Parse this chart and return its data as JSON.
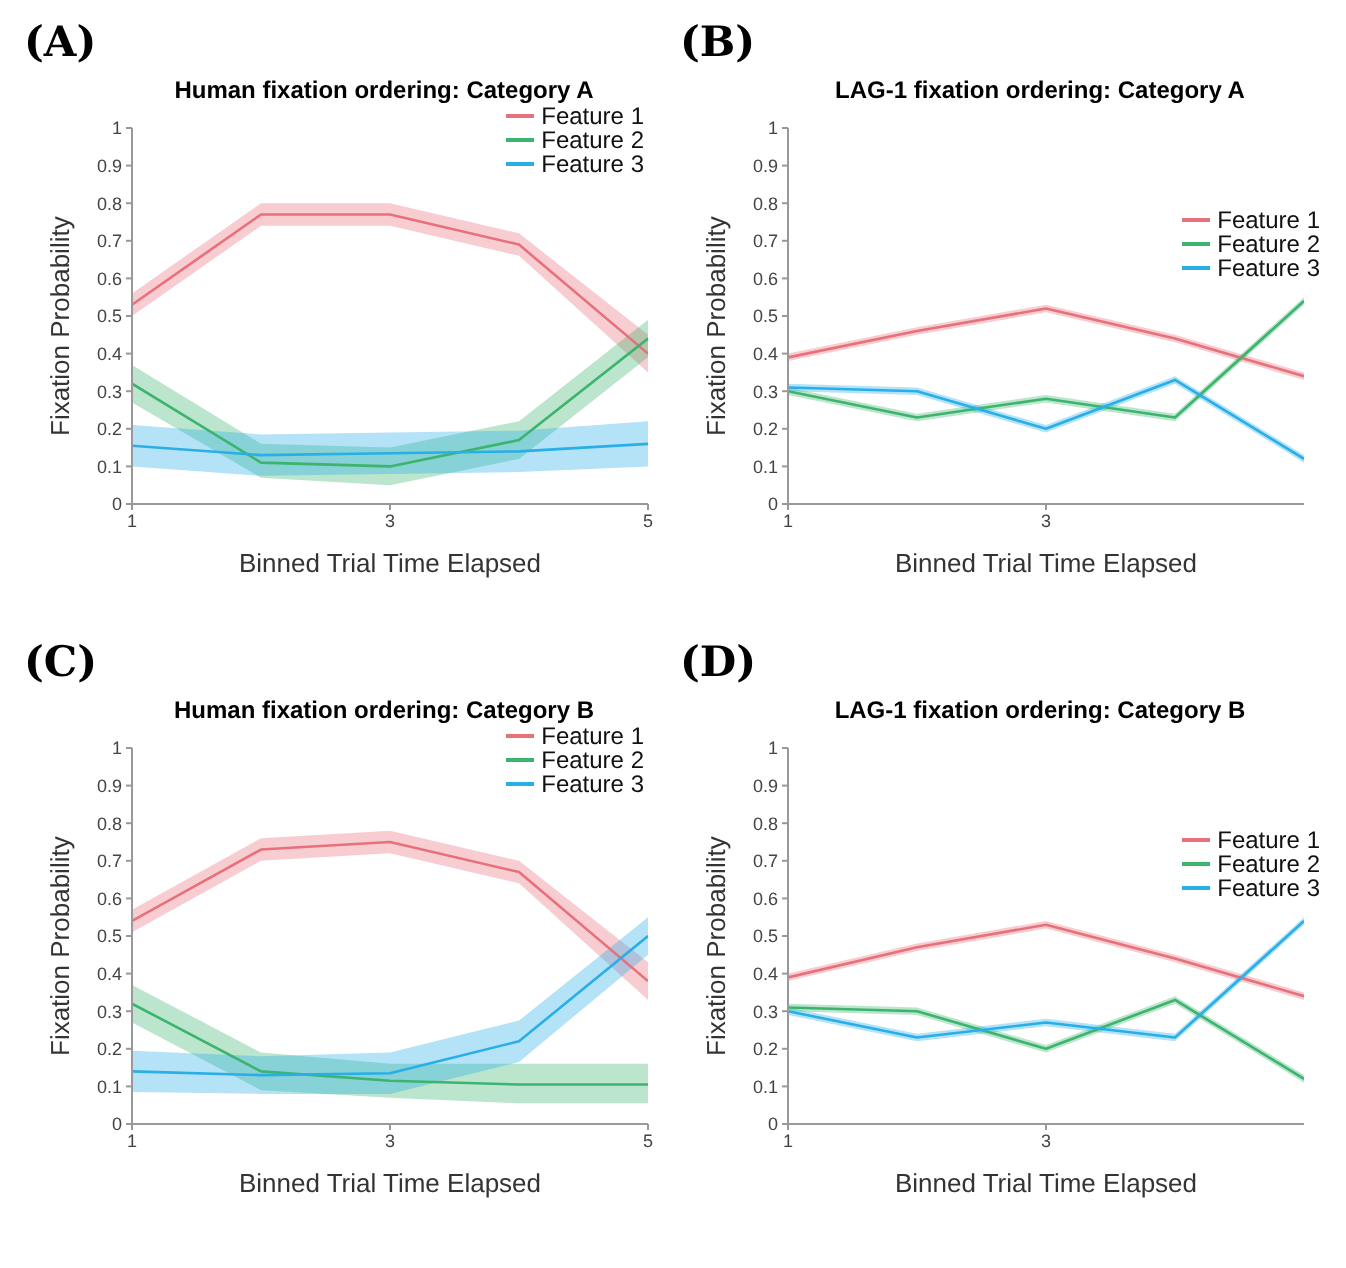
{
  "chart_data": [
    {
      "type": "line",
      "annotations": [
        "(A)"
      ],
      "title": "Human fixation ordering: Category A",
      "xlabel": "Binned Trial Time Elapsed",
      "ylabel": "Fixation Probability",
      "x": [
        1,
        2,
        3,
        4,
        5
      ],
      "xlim": [
        1,
        5
      ],
      "xticks": [
        1,
        3,
        5
      ],
      "ylim": [
        0,
        1
      ],
      "yticks": [
        0,
        0.1,
        0.2,
        0.3,
        0.4,
        0.5,
        0.6,
        0.7,
        0.8,
        0.9,
        1
      ],
      "grid": false,
      "legend": "top right",
      "marker": "none",
      "line_style": "solid",
      "series": [
        {
          "name": "Feature 1",
          "color": "#e8707a",
          "values": [
            0.53,
            0.77,
            0.77,
            0.69,
            0.4
          ],
          "lower": [
            0.5,
            0.74,
            0.74,
            0.66,
            0.35
          ],
          "upper": [
            0.56,
            0.8,
            0.8,
            0.72,
            0.45
          ]
        },
        {
          "name": "Feature 2",
          "color": "#3cb46e",
          "values": [
            0.32,
            0.11,
            0.1,
            0.17,
            0.44
          ],
          "lower": [
            0.27,
            0.07,
            0.05,
            0.12,
            0.39
          ],
          "upper": [
            0.37,
            0.16,
            0.15,
            0.22,
            0.49
          ]
        },
        {
          "name": "Feature 3",
          "color": "#29aee8",
          "values": [
            0.155,
            0.13,
            0.135,
            0.14,
            0.16
          ],
          "lower": [
            0.1,
            0.075,
            0.08,
            0.085,
            0.1
          ],
          "upper": [
            0.21,
            0.185,
            0.19,
            0.195,
            0.22
          ]
        }
      ]
    },
    {
      "type": "line",
      "annotations": [
        "(B)"
      ],
      "title": "LAG-1 fixation ordering: Category A",
      "xlabel": "Binned Trial Time Elapsed",
      "ylabel": "Fixation Probability",
      "x": [
        1,
        2,
        3,
        4,
        5
      ],
      "xlim": [
        1,
        5
      ],
      "xticks": [
        1,
        3
      ],
      "ylim": [
        0,
        1
      ],
      "yticks": [
        0,
        0.1,
        0.2,
        0.3,
        0.4,
        0.5,
        0.6,
        0.7,
        0.8,
        0.9,
        1
      ],
      "grid": false,
      "legend": "right",
      "marker": "none",
      "line_style": "solid",
      "series": [
        {
          "name": "Feature 1",
          "color": "#e8707a",
          "values": [
            0.39,
            0.46,
            0.52,
            0.44,
            0.34
          ],
          "lower": [
            0.38,
            0.45,
            0.51,
            0.43,
            0.33
          ],
          "upper": [
            0.4,
            0.47,
            0.53,
            0.45,
            0.35
          ]
        },
        {
          "name": "Feature 2",
          "color": "#3cb46e",
          "values": [
            0.3,
            0.23,
            0.28,
            0.23,
            0.54
          ],
          "lower": [
            0.29,
            0.22,
            0.27,
            0.22,
            0.53
          ],
          "upper": [
            0.31,
            0.24,
            0.29,
            0.24,
            0.55
          ]
        },
        {
          "name": "Feature 3",
          "color": "#29aee8",
          "values": [
            0.31,
            0.3,
            0.2,
            0.33,
            0.12
          ],
          "lower": [
            0.3,
            0.29,
            0.19,
            0.32,
            0.11
          ],
          "upper": [
            0.32,
            0.31,
            0.21,
            0.34,
            0.13
          ]
        }
      ]
    },
    {
      "type": "line",
      "annotations": [
        "(C)"
      ],
      "title": "Human fixation ordering: Category B",
      "xlabel": "Binned Trial Time Elapsed",
      "ylabel": "Fixation Probability",
      "x": [
        1,
        2,
        3,
        4,
        5
      ],
      "xlim": [
        1,
        5
      ],
      "xticks": [
        1,
        3,
        5
      ],
      "ylim": [
        0,
        1
      ],
      "yticks": [
        0,
        0.1,
        0.2,
        0.3,
        0.4,
        0.5,
        0.6,
        0.7,
        0.8,
        0.9,
        1
      ],
      "grid": false,
      "legend": "top right",
      "marker": "none",
      "line_style": "solid",
      "series": [
        {
          "name": "Feature 1",
          "color": "#e8707a",
          "values": [
            0.54,
            0.73,
            0.75,
            0.67,
            0.38
          ],
          "lower": [
            0.51,
            0.7,
            0.72,
            0.64,
            0.33
          ],
          "upper": [
            0.57,
            0.76,
            0.78,
            0.7,
            0.43
          ]
        },
        {
          "name": "Feature 2",
          "color": "#3cb46e",
          "values": [
            0.32,
            0.14,
            0.115,
            0.105,
            0.105
          ],
          "lower": [
            0.27,
            0.09,
            0.07,
            0.055,
            0.055
          ],
          "upper": [
            0.37,
            0.19,
            0.16,
            0.16,
            0.16
          ]
        },
        {
          "name": "Feature 3",
          "color": "#29aee8",
          "values": [
            0.14,
            0.13,
            0.135,
            0.22,
            0.5
          ],
          "lower": [
            0.085,
            0.08,
            0.08,
            0.165,
            0.45
          ],
          "upper": [
            0.195,
            0.18,
            0.19,
            0.275,
            0.55
          ]
        }
      ]
    },
    {
      "type": "line",
      "annotations": [
        "(D)"
      ],
      "title": "LAG-1 fixation ordering: Category B",
      "xlabel": "Binned Trial Time Elapsed",
      "ylabel": "Fixation Probability",
      "x": [
        1,
        2,
        3,
        4,
        5
      ],
      "xlim": [
        1,
        5
      ],
      "xticks": [
        1,
        3
      ],
      "ylim": [
        0,
        1
      ],
      "yticks": [
        0,
        0.1,
        0.2,
        0.3,
        0.4,
        0.5,
        0.6,
        0.7,
        0.8,
        0.9,
        1
      ],
      "grid": false,
      "legend": "right",
      "marker": "none",
      "line_style": "solid",
      "series": [
        {
          "name": "Feature 1",
          "color": "#e8707a",
          "values": [
            0.39,
            0.47,
            0.53,
            0.44,
            0.34
          ],
          "lower": [
            0.38,
            0.46,
            0.52,
            0.43,
            0.33
          ],
          "upper": [
            0.4,
            0.48,
            0.54,
            0.45,
            0.35
          ]
        },
        {
          "name": "Feature 2",
          "color": "#3cb46e",
          "values": [
            0.31,
            0.3,
            0.2,
            0.33,
            0.12
          ],
          "lower": [
            0.3,
            0.29,
            0.19,
            0.32,
            0.11
          ],
          "upper": [
            0.32,
            0.31,
            0.21,
            0.34,
            0.13
          ]
        },
        {
          "name": "Feature 3",
          "color": "#29aee8",
          "values": [
            0.3,
            0.23,
            0.27,
            0.23,
            0.54
          ],
          "lower": [
            0.29,
            0.22,
            0.26,
            0.22,
            0.53
          ],
          "upper": [
            0.31,
            0.24,
            0.28,
            0.24,
            0.55
          ]
        }
      ]
    }
  ]
}
